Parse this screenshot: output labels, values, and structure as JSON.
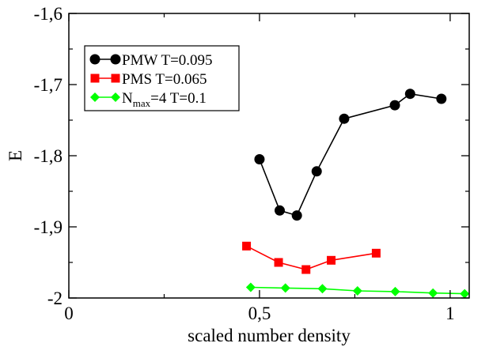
{
  "chart_data": {
    "type": "line",
    "title": "",
    "xlabel": "scaled number density",
    "ylabel": "E",
    "xlim": [
      0,
      1.05
    ],
    "ylim": [
      -2.0,
      -1.6
    ],
    "xticks": [
      0,
      0.5,
      1
    ],
    "xtick_labels": [
      "0",
      "0,5",
      "1"
    ],
    "yticks": [
      -2.0,
      -1.9,
      -1.8,
      -1.7,
      -1.6
    ],
    "ytick_labels": [
      "-2",
      "-1,9",
      "-1,8",
      "-1,7",
      "-1,6"
    ],
    "grid": false,
    "legend_position": "top-left",
    "series": [
      {
        "name": "PMW T=0.095",
        "legend_label": "PMW T=0.095",
        "color": "#000000",
        "marker": "circle",
        "x": [
          0.5,
          0.553,
          0.598,
          0.65,
          0.722,
          0.855,
          0.895,
          0.977
        ],
        "y": [
          -1.805,
          -1.877,
          -1.884,
          -1.822,
          -1.748,
          -1.729,
          -1.713,
          -1.72
        ]
      },
      {
        "name": "PMS T=0.065",
        "legend_label": "PMS  T=0.065",
        "color": "#ff0000",
        "marker": "square",
        "x": [
          0.466,
          0.55,
          0.622,
          0.688,
          0.806
        ],
        "y": [
          -1.927,
          -1.95,
          -1.96,
          -1.947,
          -1.937
        ]
      },
      {
        "name": "N_max=4 T=0.1",
        "legend_label_main": "N",
        "legend_label_sub": "max",
        "legend_label_rest": "=4  T=0.1",
        "color": "#00ff00",
        "marker": "diamond",
        "x": [
          0.477,
          0.568,
          0.665,
          0.757,
          0.856,
          0.955,
          1.038
        ],
        "y": [
          -1.985,
          -1.986,
          -1.987,
          -1.99,
          -1.991,
          -1.993,
          -1.994
        ]
      }
    ]
  }
}
